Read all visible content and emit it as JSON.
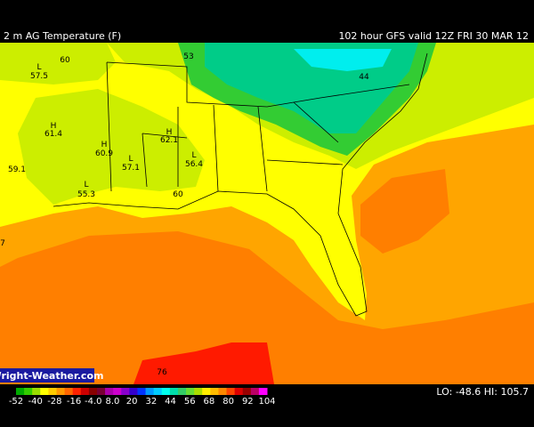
{
  "header": {
    "title": "2 m AG Temperature (F)",
    "valid": "102 hour GFS valid 12Z FRI 30 MAR 12"
  },
  "map": {
    "labels": [
      "L",
      "57.5",
      "60",
      "H",
      "61.4",
      "59.1",
      "H",
      "60.9",
      "L",
      "57.1",
      "H",
      "62.1",
      "L",
      "56.4",
      "L",
      "55.3",
      "60",
      "53",
      "44",
      "76",
      "7"
    ]
  },
  "branding": "Wright-Weather.com",
  "legend": {
    "ticks": [
      "-52",
      "-40",
      "-28",
      "-16",
      "-4.0",
      "8.0",
      "20",
      "32",
      "44",
      "56",
      "68",
      "80",
      "92",
      "104"
    ]
  },
  "stats": "LO: -48.6  HI: 105.7"
}
